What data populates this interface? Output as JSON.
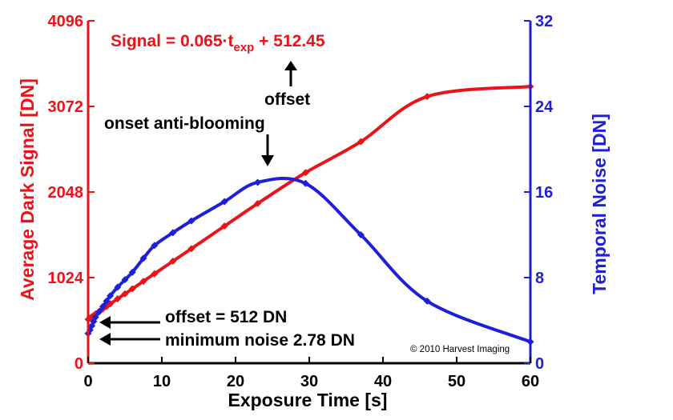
{
  "chart_data": {
    "type": "line",
    "xlabel": "Exposure Time [s]",
    "ylabel_left": "Average Dark Signal [DN]",
    "ylabel_right": "Temporal Noise [DN]",
    "xlim": [
      0,
      60
    ],
    "ylim_left": [
      0,
      4096
    ],
    "ylim_right": [
      0,
      32
    ],
    "x_ticks": [
      "0",
      "10",
      "20",
      "30",
      "40",
      "50",
      "60"
    ],
    "y_left_ticks": [
      "0",
      "1024",
      "2048",
      "3072",
      "4096"
    ],
    "y_right_ticks": [
      "0",
      "8",
      "16",
      "24",
      "32"
    ],
    "series": [
      {
        "axis": "left",
        "color": "#e8141a",
        "x": [
          0,
          0.25,
          0.5,
          0.75,
          1.0,
          1.5,
          2.0,
          2.5,
          3.0,
          4.0,
          5.0,
          6.0,
          7.5,
          9.0,
          11.5,
          14.0,
          18.5,
          23.0,
          29.5,
          37.0,
          46.0,
          60.0
        ],
        "y": [
          525,
          540,
          555,
          570,
          590,
          620,
          650,
          680,
          710,
          770,
          830,
          890,
          980,
          1070,
          1220,
          1370,
          1640,
          1910,
          2280,
          2650,
          3190,
          3310
        ]
      },
      {
        "axis": "right",
        "color": "#1f1fd6",
        "x": [
          0,
          0.25,
          0.5,
          0.75,
          1.0,
          1.5,
          2.0,
          2.5,
          3.0,
          4.0,
          5.0,
          6.0,
          7.5,
          9.0,
          11.5,
          14.0,
          18.5,
          23.0,
          29.5,
          37.0,
          46.0,
          60.0
        ],
        "y": [
          2.78,
          3.1,
          3.5,
          3.9,
          4.3,
          4.8,
          5.3,
          5.8,
          6.3,
          7.1,
          7.8,
          8.5,
          9.8,
          11.0,
          12.2,
          13.3,
          15.1,
          16.9,
          16.8,
          12.0,
          5.8,
          2.0
        ]
      }
    ],
    "annotations": {
      "formula_main": "Signal = 0.065·t",
      "formula_sub": "exp",
      "formula_tail": " + 512.45",
      "offset_arrow": "offset",
      "onset": "onset anti-blooming",
      "offset_value": "offset = 512 DN",
      "min_noise": "minimum noise 2.78 DN",
      "copyright": "© 2010 Harvest Imaging"
    }
  }
}
